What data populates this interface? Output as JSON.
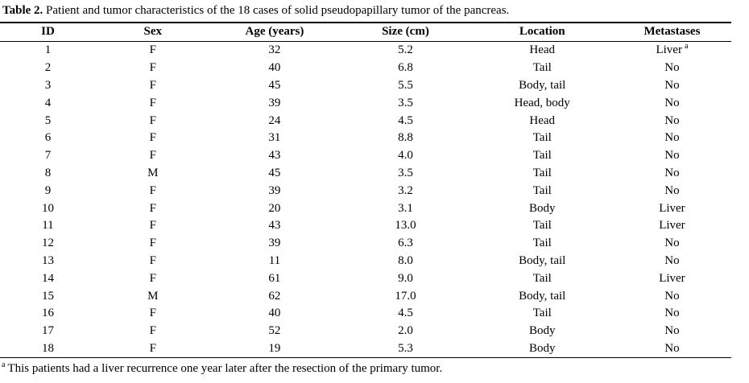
{
  "table": {
    "title_label": "Table 2.",
    "title_text": "Patient and tumor characteristics of the 18 cases of solid pseudopapillary tumor of the pancreas.",
    "columns": [
      "ID",
      "Sex",
      "Age (years)",
      "Size (cm)",
      "Location",
      "Metastases"
    ],
    "column_keys": [
      "id",
      "sex",
      "age",
      "size",
      "location",
      "metastases"
    ],
    "rows": [
      {
        "cells": [
          "1",
          "F",
          "32",
          "5.2",
          "Head",
          "Liver"
        ],
        "metastases_superscript": "a"
      },
      {
        "cells": [
          "2",
          "F",
          "40",
          "6.8",
          "Tail",
          "No"
        ],
        "metastases_superscript": ""
      },
      {
        "cells": [
          "3",
          "F",
          "45",
          "5.5",
          "Body, tail",
          "No"
        ],
        "metastases_superscript": ""
      },
      {
        "cells": [
          "4",
          "F",
          "39",
          "3.5",
          "Head, body",
          "No"
        ],
        "metastases_superscript": ""
      },
      {
        "cells": [
          "5",
          "F",
          "24",
          "4.5",
          "Head",
          "No"
        ],
        "metastases_superscript": ""
      },
      {
        "cells": [
          "6",
          "F",
          "31",
          "8.8",
          "Tail",
          "No"
        ],
        "metastases_superscript": ""
      },
      {
        "cells": [
          "7",
          "F",
          "43",
          "4.0",
          "Tail",
          "No"
        ],
        "metastases_superscript": ""
      },
      {
        "cells": [
          "8",
          "M",
          "45",
          "3.5",
          "Tail",
          "No"
        ],
        "metastases_superscript": ""
      },
      {
        "cells": [
          "9",
          "F",
          "39",
          "3.2",
          "Tail",
          "No"
        ],
        "metastases_superscript": ""
      },
      {
        "cells": [
          "10",
          "F",
          "20",
          "3.1",
          "Body",
          "Liver"
        ],
        "metastases_superscript": ""
      },
      {
        "cells": [
          "11",
          "F",
          "43",
          "13.0",
          "Tail",
          "Liver"
        ],
        "metastases_superscript": ""
      },
      {
        "cells": [
          "12",
          "F",
          "39",
          "6.3",
          "Tail",
          "No"
        ],
        "metastases_superscript": ""
      },
      {
        "cells": [
          "13",
          "F",
          "11",
          "8.0",
          "Body, tail",
          "No"
        ],
        "metastases_superscript": ""
      },
      {
        "cells": [
          "14",
          "F",
          "61",
          "9.0",
          "Tail",
          "Liver"
        ],
        "metastases_superscript": ""
      },
      {
        "cells": [
          "15",
          "M",
          "62",
          "17.0",
          "Body, tail",
          "No"
        ],
        "metastases_superscript": ""
      },
      {
        "cells": [
          "16",
          "F",
          "40",
          "4.5",
          "Tail",
          "No"
        ],
        "metastases_superscript": ""
      },
      {
        "cells": [
          "17",
          "F",
          "52",
          "2.0",
          "Body",
          "No"
        ],
        "metastases_superscript": ""
      },
      {
        "cells": [
          "18",
          "F",
          "19",
          "5.3",
          "Body",
          "No"
        ],
        "metastases_superscript": ""
      }
    ],
    "footnote_marker": "a",
    "footnote_text": "This patients had a liver recurrence one year later after the resection of the primary tumor.",
    "text_color": "#000000",
    "background_color": "#ffffff"
  }
}
